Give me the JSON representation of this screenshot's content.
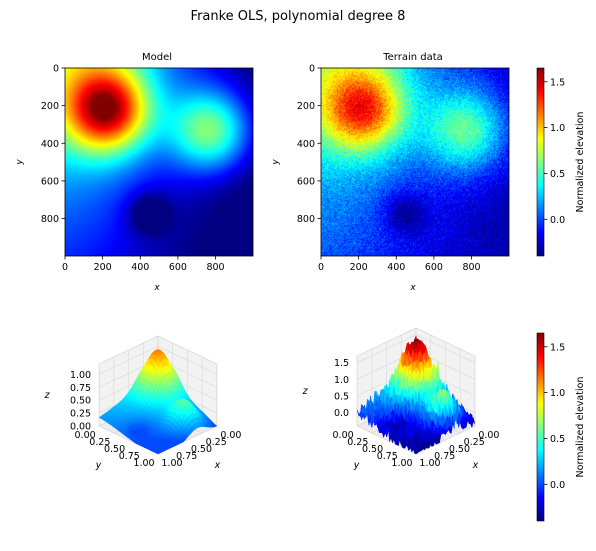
{
  "figure": {
    "title": "Franke OLS, polynomial degree 8"
  },
  "colormap": {
    "name": "jet",
    "stops": [
      "#00007f",
      "#0000ff",
      "#007fff",
      "#00ffff",
      "#7fff7f",
      "#ffff00",
      "#ff7f00",
      "#ff0000",
      "#7f0000"
    ]
  },
  "chart_data": [
    {
      "type": "heatmap",
      "title": "Model",
      "xlabel": "x",
      "ylabel": "y",
      "xlim": [
        0,
        999
      ],
      "ylim": [
        999,
        0
      ],
      "xticks": [
        0,
        200,
        400,
        600,
        800
      ],
      "yticks": [
        0,
        200,
        400,
        600,
        800
      ],
      "value_range": [
        -0.4,
        1.65
      ],
      "features": [
        {
          "center": [
            200,
            185
          ],
          "peak_value": 1.6
        },
        {
          "center": [
            740,
            320
          ],
          "peak_value": 0.6
        },
        {
          "center": [
            470,
            790
          ],
          "peak_value": -0.35
        }
      ]
    },
    {
      "type": "heatmap",
      "title": "Terrain data",
      "xlabel": "x",
      "ylabel": "y",
      "xlim": [
        0,
        999
      ],
      "ylim": [
        999,
        0
      ],
      "xticks": [
        0,
        200,
        400,
        600,
        800
      ],
      "yticks": [
        0,
        200,
        400,
        600,
        800
      ],
      "value_range": [
        -0.4,
        1.65
      ],
      "noisy": true,
      "features": [
        {
          "center": [
            210,
            200
          ],
          "peak_value": 1.15
        },
        {
          "center": [
            740,
            320
          ],
          "peak_value": 0.65
        },
        {
          "center": [
            450,
            770
          ],
          "peak_value": -0.1
        }
      ]
    },
    {
      "type": "colorbar",
      "label": "Normalized elevation",
      "ticks": [
        0.0,
        0.5,
        1.0,
        1.5
      ],
      "tick_labels": [
        "0.0",
        "0.5",
        "1.0",
        "1.5"
      ],
      "range": [
        -0.4,
        1.65
      ]
    },
    {
      "type": "surface",
      "xlabel": "x",
      "ylabel": "y",
      "zlabel": "z",
      "x_ticks": [
        "0.00",
        "0.25",
        "0.50",
        "0.75",
        "1.00"
      ],
      "y_ticks": [
        "0.00",
        "0.25",
        "0.50",
        "0.75",
        "1.00"
      ],
      "z_ticks": [
        "0.00",
        "0.25",
        "0.50",
        "0.75",
        "1.00"
      ],
      "zlim": [
        0,
        1.2
      ]
    },
    {
      "type": "surface",
      "xlabel": "x",
      "ylabel": "y",
      "zlabel": "z",
      "x_ticks": [
        "0.00",
        "0.25",
        "0.50",
        "0.75",
        "1.00"
      ],
      "y_ticks": [
        "0.00",
        "0.25",
        "0.50",
        "0.75",
        "1.00"
      ],
      "z_ticks": [
        "0.0",
        "0.5",
        "1.0",
        "1.5"
      ],
      "zlim": [
        -0.4,
        1.7
      ],
      "noisy": true
    },
    {
      "type": "colorbar",
      "label": "Normalized elevation",
      "ticks": [
        0.0,
        0.5,
        1.0,
        1.5
      ],
      "tick_labels": [
        "0.0",
        "0.5",
        "1.0",
        "1.5"
      ],
      "range": [
        -0.4,
        1.65
      ]
    }
  ]
}
